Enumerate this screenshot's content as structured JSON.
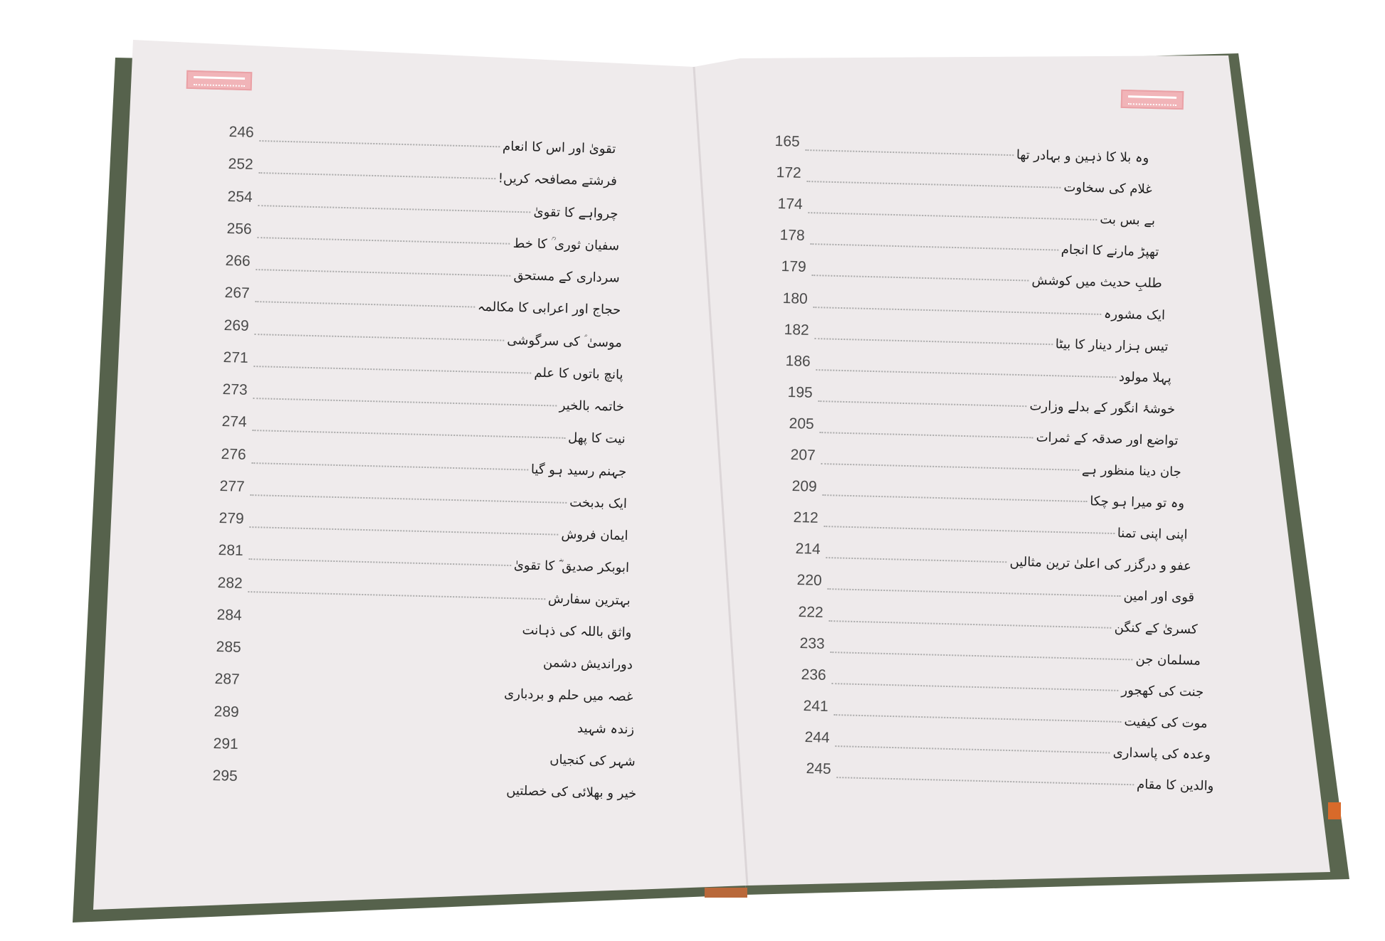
{
  "colors": {
    "cover": "#56624c",
    "page": "#efebec",
    "stamp": "#f1b4b8"
  },
  "left_page": {
    "entries": [
      {
        "page": "246",
        "title": "تقویٰ اور اس کا انعام"
      },
      {
        "page": "252",
        "title": "فرشتے مصافحہ کریں!"
      },
      {
        "page": "254",
        "title": "چرواہے کا تقویٰ"
      },
      {
        "page": "256",
        "title": "سفیان ثوری ؒ کا خط"
      },
      {
        "page": "266",
        "title": "سرداری کے مستحق"
      },
      {
        "page": "267",
        "title": "حجاج اور اعرابی کا مکالمہ"
      },
      {
        "page": "269",
        "title": "موسیٰ ؑ کی سرگوشی"
      },
      {
        "page": "271",
        "title": "پانچ باتوں کا علم"
      },
      {
        "page": "273",
        "title": "خاتمہ بالخیر"
      },
      {
        "page": "274",
        "title": "نیت کا پھل"
      },
      {
        "page": "276",
        "title": "جہنم رسید ہو گیا"
      },
      {
        "page": "277",
        "title": "ایک بدبخت"
      },
      {
        "page": "279",
        "title": "ایمان فروش"
      },
      {
        "page": "281",
        "title": "ابوبکر صدیق ؓ کا تقویٰ"
      },
      {
        "page": "282",
        "title": "بہترین سفارش"
      },
      {
        "page": "284",
        "title": "واثق باللہ کی ذہانت"
      },
      {
        "page": "285",
        "title": "دوراندیش دشمن"
      },
      {
        "page": "287",
        "title": "غصہ میں حلم و بردباری"
      },
      {
        "page": "289",
        "title": "زندہ شہید"
      },
      {
        "page": "291",
        "title": "شہر کی کنجیاں"
      },
      {
        "page": "295",
        "title": "خیر و بھلائی کی خصلتیں"
      }
    ]
  },
  "right_page": {
    "entries": [
      {
        "page": "165",
        "title": "وہ بلا کا ذہین و بہادر تھا"
      },
      {
        "page": "172",
        "title": "غلام کی سخاوت"
      },
      {
        "page": "174",
        "title": "بے بس بت"
      },
      {
        "page": "178",
        "title": "تھپڑ مارنے کا انجام"
      },
      {
        "page": "179",
        "title": "طلبِ حدیث میں کوشش"
      },
      {
        "page": "180",
        "title": "ایک مشورہ"
      },
      {
        "page": "182",
        "title": "تیس ہزار دینار کا بیٹا"
      },
      {
        "page": "186",
        "title": "پہلا مولود"
      },
      {
        "page": "195",
        "title": "خوشۂ انگور کے بدلے وزارت"
      },
      {
        "page": "205",
        "title": "تواضع اور صدقہ کے ثمرات"
      },
      {
        "page": "207",
        "title": "جان دینا منظور ہے"
      },
      {
        "page": "209",
        "title": "وہ تو میرا ہو چکا"
      },
      {
        "page": "212",
        "title": "اپنی اپنی تمنا"
      },
      {
        "page": "214",
        "title": "عفو و درگزر کی اعلیٰ ترین مثالیں"
      },
      {
        "page": "220",
        "title": "قوی اور امین"
      },
      {
        "page": "222",
        "title": "کسریٰ کے کنگن"
      },
      {
        "page": "233",
        "title": "مسلمان جن"
      },
      {
        "page": "236",
        "title": "جنت کی کھجور"
      },
      {
        "page": "241",
        "title": "موت کی کیفیت"
      },
      {
        "page": "244",
        "title": "وعدہ کی پاسداری"
      },
      {
        "page": "245",
        "title": "والدین کا مقام"
      }
    ]
  }
}
